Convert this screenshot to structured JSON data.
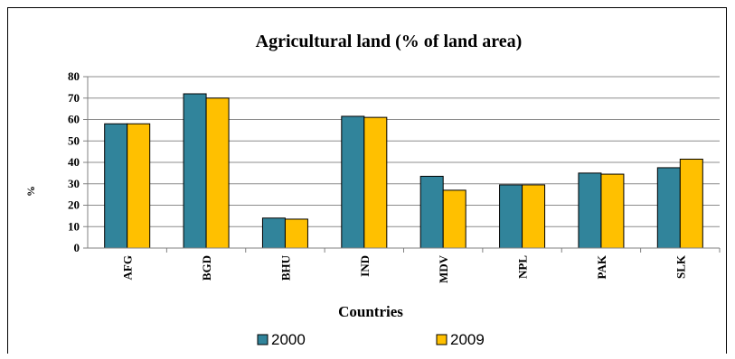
{
  "chart_data": {
    "type": "bar",
    "title": "Agricultural land (%  of land area)",
    "xlabel": "Countries",
    "ylabel": "%",
    "categories": [
      "AFG",
      "BGD",
      "BHU",
      "IND",
      "MDV",
      "NPL",
      "PAK",
      "SLK"
    ],
    "series": [
      {
        "name": "2000",
        "color": "#31849B",
        "values": [
          58,
          72,
          14,
          61.5,
          33.5,
          29.5,
          35,
          37.5
        ]
      },
      {
        "name": "2009",
        "color": "#FFC000",
        "values": [
          58,
          70,
          13.5,
          61,
          27,
          29.5,
          34.5,
          41.5
        ]
      }
    ],
    "ylim": [
      0,
      80
    ],
    "yticks": [
      0,
      10,
      20,
      30,
      40,
      50,
      60,
      70,
      80
    ],
    "grid": true,
    "legend_position": "bottom"
  }
}
